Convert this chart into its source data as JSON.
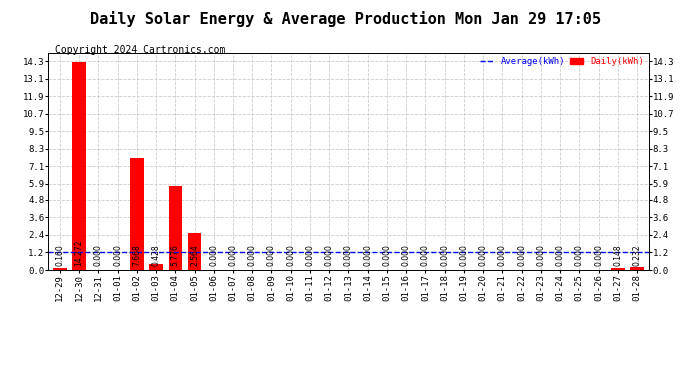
{
  "title": "Daily Solar Energy & Average Production Mon Jan 29 17:05",
  "copyright": "Copyright 2024 Cartronics.com",
  "legend_average": "Average(kWh)",
  "legend_daily": "Daily(kWh)",
  "categories": [
    "12-29",
    "12-30",
    "12-31",
    "01-01",
    "01-02",
    "01-03",
    "01-04",
    "01-05",
    "01-06",
    "01-07",
    "01-08",
    "01-09",
    "01-10",
    "01-11",
    "01-12",
    "01-13",
    "01-14",
    "01-15",
    "01-16",
    "01-17",
    "01-18",
    "01-19",
    "01-20",
    "01-21",
    "01-22",
    "01-23",
    "01-24",
    "01-25",
    "01-26",
    "01-27",
    "01-28"
  ],
  "daily_values": [
    0.16,
    14.272,
    0.0,
    0.0,
    7.668,
    0.428,
    5.776,
    2.564,
    0.0,
    0.0,
    0.0,
    0.0,
    0.0,
    0.0,
    0.0,
    0.0,
    0.0,
    0.0,
    0.0,
    0.0,
    0.0,
    0.0,
    0.0,
    0.0,
    0.0,
    0.0,
    0.0,
    0.0,
    0.0,
    0.148,
    0.232
  ],
  "average_value": 1.2,
  "bar_color": "#ff0000",
  "average_line_color": "#0000ff",
  "average_line_style": "--",
  "bar_label_color": "#000000",
  "yticks": [
    0.0,
    1.2,
    2.4,
    3.6,
    4.8,
    5.9,
    7.1,
    8.3,
    9.5,
    10.7,
    11.9,
    13.1,
    14.3
  ],
  "ylim": [
    0.0,
    14.9
  ],
  "background_color": "#ffffff",
  "grid_color": "#cccccc",
  "title_fontsize": 11,
  "copyright_fontsize": 7,
  "tick_fontsize": 6.5,
  "bar_label_fontsize": 5.5
}
